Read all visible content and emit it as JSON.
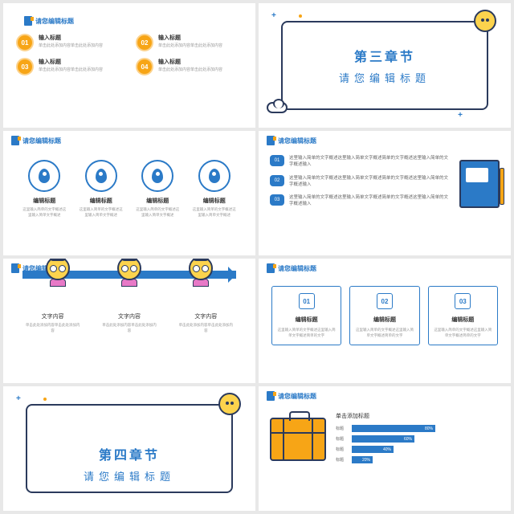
{
  "colors": {
    "blue": "#2b7ac7",
    "orange": "#f7a516",
    "yellow": "#fcd34d",
    "dark": "#2b3a5c",
    "gray": "#999"
  },
  "header_placeholder": "请您编辑标题",
  "s1": {
    "header": "请您编辑标题",
    "items": [
      {
        "num": "01",
        "title": "输入标题",
        "desc": "单击此处添加内容单击此处添加内容"
      },
      {
        "num": "02",
        "title": "输入标题",
        "desc": "单击此处添加内容单击此处添加内容"
      },
      {
        "num": "03",
        "title": "输入标题",
        "desc": "单击此处添加内容单击此处添加内容"
      },
      {
        "num": "04",
        "title": "输入标题",
        "desc": "单击此处添加内容单击此处添加内容"
      }
    ]
  },
  "s2": {
    "chapter": "第三章节",
    "subtitle": "请您编辑标题"
  },
  "s3": {
    "header": "请您编辑标题",
    "items": [
      {
        "title": "编辑标题",
        "desc": "这里输入简单的文字概述这里输入简单文字概述"
      },
      {
        "title": "编辑标题",
        "desc": "这里输入简单的文字概述这里输入简单文字概述"
      },
      {
        "title": "编辑标题",
        "desc": "这里输入简单的文字概述这里输入简单文字概述"
      },
      {
        "title": "编辑标题",
        "desc": "这里输入简单的文字概述这里输入简单文字概述"
      }
    ]
  },
  "s4": {
    "header": "请您编辑标题",
    "items": [
      {
        "num": "01",
        "text": "这里输入简单的文字概述这里输入简单文字概述简单的文字概述这里输入简单的文字概述输入"
      },
      {
        "num": "02",
        "text": "这里输入简单的文字概述这里输入简单文字概述简单的文字概述这里输入简单的文字概述输入"
      },
      {
        "num": "03",
        "text": "这里输入简单的文字概述这里输入简单文字概述简单的文字概述这里输入简单的文字概述输入"
      }
    ]
  },
  "s5": {
    "header": "请您编辑标题",
    "nums": [
      "1",
      "2",
      "3"
    ],
    "items": [
      {
        "title": "文字内容",
        "desc": "单击此处添加内容单击此处添加内容"
      },
      {
        "title": "文字内容",
        "desc": "单击此处添加内容单击此处添加内容"
      },
      {
        "title": "文字内容",
        "desc": "单击此处添加内容单击此处添加内容"
      }
    ]
  },
  "s6": {
    "header": "请您编辑标题",
    "items": [
      {
        "num": "01",
        "title": "编辑标题",
        "desc": "这里输入简单的文字概述这里输入简单文字概述简单的文字"
      },
      {
        "num": "02",
        "title": "编辑标题",
        "desc": "这里输入简单的文字概述这里输入简单文字概述简单的文字"
      },
      {
        "num": "03",
        "title": "编辑标题",
        "desc": "这里输入简单的文字概述这里输入简单文字概述简单的文字"
      }
    ]
  },
  "s7": {
    "chapter": "第四章节",
    "subtitle": "请您编辑标题"
  },
  "s8": {
    "header": "请您编辑标题",
    "bars_title": "单击添加标题",
    "bars": [
      {
        "label": "标题",
        "pct": 80,
        "text": "80%"
      },
      {
        "label": "标题",
        "pct": 60,
        "text": "60%"
      },
      {
        "label": "标题",
        "pct": 40,
        "text": "40%"
      },
      {
        "label": "标题",
        "pct": 20,
        "text": "20%"
      }
    ]
  }
}
